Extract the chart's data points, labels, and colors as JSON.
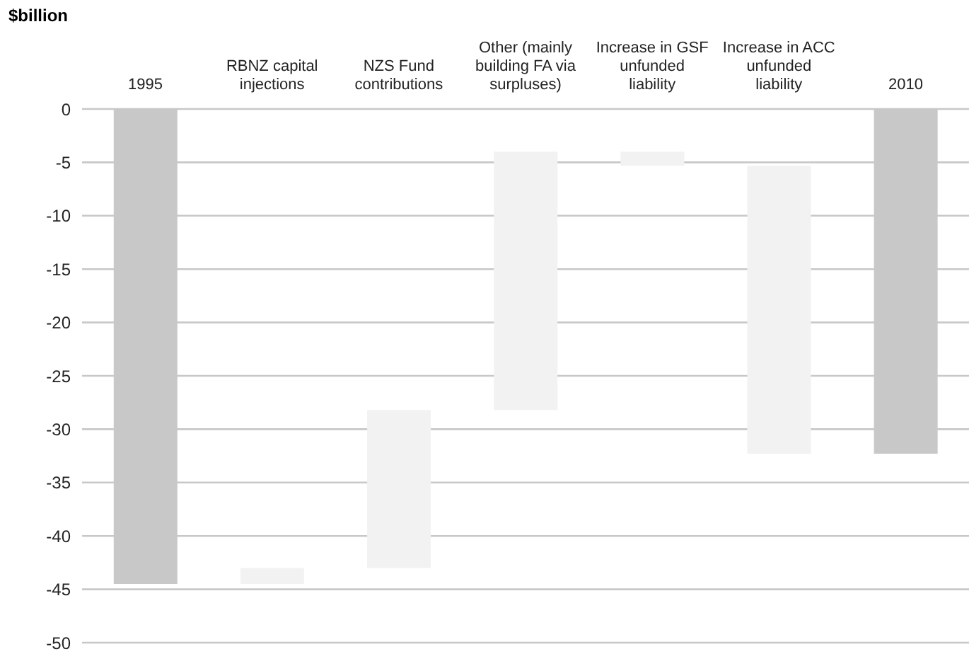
{
  "chart_data": {
    "type": "bar",
    "ylabel": "$billion",
    "categories": [
      "1995",
      "RBNZ capital injections",
      "NZS Fund contributions",
      "Other (mainly building FA via surpluses)",
      "Increase in GSF unfunded liability",
      "Increase in ACC unfunded liability",
      "2010"
    ],
    "values": [
      -44.5,
      1.5,
      14.8,
      24.2,
      -1.3,
      -27,
      -32.3
    ],
    "base": [
      0,
      -44.5,
      -43,
      -28.2,
      -4,
      -5.3,
      0
    ],
    "colors": [
      "#c8c8c8",
      "#f2f2f2",
      "#f2f2f2",
      "#f2f2f2",
      "#f2f2f2",
      "#f2f2f2",
      "#c8c8c8"
    ],
    "ylim": [
      -50,
      0
    ],
    "yticks": [
      0,
      -5,
      -10,
      -15,
      -20,
      -25,
      -30,
      -35,
      -40,
      -45,
      -50
    ],
    "grid": "y"
  }
}
